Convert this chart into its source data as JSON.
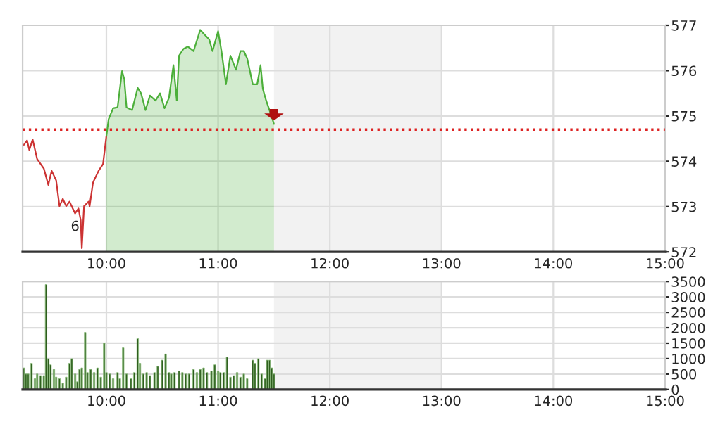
{
  "chart_data": [
    {
      "type": "area",
      "annotations": [
        {
          "text": "6",
          "x": 9.72,
          "y": 572.55
        }
      ],
      "series": [
        {
          "type": "line",
          "color": "#cc3333",
          "x": [
            9.26,
            9.29,
            9.31,
            9.34,
            9.38,
            9.44,
            9.48,
            9.51,
            9.55,
            9.58,
            9.61,
            9.64,
            9.67,
            9.72,
            9.75,
            9.77,
            9.78,
            9.8,
            9.84,
            9.85,
            9.88,
            9.93,
            9.97,
            10.0
          ],
          "values": [
            574.36,
            574.46,
            574.25,
            574.48,
            574.05,
            573.84,
            573.48,
            573.79,
            573.58,
            573.01,
            573.17,
            573.01,
            573.11,
            572.85,
            572.96,
            572.7,
            572.08,
            573.01,
            573.11,
            573.01,
            573.53,
            573.79,
            573.94,
            574.56
          ]
        },
        {
          "type": "area",
          "color": "#4caf3a",
          "x": [
            10.0,
            10.02,
            10.06,
            10.1,
            10.14,
            10.16,
            10.18,
            10.23,
            10.28,
            10.31,
            10.35,
            10.39,
            10.44,
            10.48,
            10.52,
            10.56,
            10.6,
            10.63,
            10.65,
            10.69,
            10.73,
            10.78,
            10.84,
            10.88,
            10.92,
            10.95,
            11.0,
            11.03,
            11.07,
            11.11,
            11.16,
            11.2,
            11.23,
            11.26,
            11.31,
            11.35,
            11.38,
            11.4,
            11.43,
            11.48,
            11.5
          ],
          "values": [
            574.56,
            574.93,
            575.17,
            575.19,
            575.99,
            575.81,
            575.19,
            575.13,
            575.62,
            575.5,
            575.13,
            575.45,
            575.34,
            575.5,
            575.17,
            575.4,
            576.12,
            575.34,
            576.33,
            576.48,
            576.53,
            576.43,
            576.9,
            576.79,
            576.69,
            576.43,
            576.87,
            576.43,
            575.7,
            576.33,
            576.02,
            576.43,
            576.43,
            576.27,
            575.7,
            575.7,
            576.12,
            575.6,
            575.34,
            574.98,
            574.82
          ]
        }
      ],
      "xlim": [
        9.25,
        15
      ],
      "xticks": [
        {
          "value": 10,
          "label": "10:00"
        },
        {
          "value": 11,
          "label": "11:00"
        },
        {
          "value": 12,
          "label": "12:00"
        },
        {
          "value": 13,
          "label": "13:00"
        },
        {
          "value": 14,
          "label": "14:00"
        },
        {
          "value": 15,
          "label": "15:00"
        }
      ],
      "ylim": [
        572,
        577
      ],
      "yticks": [
        572,
        573,
        574,
        575,
        576,
        577
      ],
      "ref_lines": [
        {
          "axis": "y",
          "value": 574.7,
          "color": "#dd2222",
          "line_style": "dotted"
        }
      ],
      "bands": [
        {
          "axis": "x",
          "from": 11.5,
          "to": 13,
          "color": "#f2f2f2"
        }
      ],
      "grid": true,
      "legend": false
    },
    {
      "type": "bar",
      "series": [
        {
          "color": "#2e5e1e",
          "x": [
            9.26,
            9.28,
            9.3,
            9.33,
            9.36,
            9.38,
            9.41,
            9.44,
            9.46,
            9.48,
            9.5,
            9.53,
            9.55,
            9.58,
            9.61,
            9.64,
            9.67,
            9.69,
            9.72,
            9.74,
            9.76,
            9.78,
            9.81,
            9.83,
            9.86,
            9.89,
            9.92,
            9.95,
            9.98,
            10.0,
            10.03,
            10.06,
            10.1,
            10.12,
            10.15,
            10.18,
            10.22,
            10.25,
            10.28,
            10.3,
            10.33,
            10.36,
            10.39,
            10.43,
            10.46,
            10.5,
            10.53,
            10.56,
            10.58,
            10.61,
            10.65,
            10.68,
            10.71,
            10.74,
            10.78,
            10.81,
            10.84,
            10.87,
            10.9,
            10.94,
            10.97,
            11.0,
            11.02,
            11.05,
            11.08,
            11.11,
            11.14,
            11.17,
            11.2,
            11.23,
            11.26,
            11.31,
            11.33,
            11.36,
            11.39,
            11.42,
            11.44,
            11.46,
            11.48,
            11.5
          ],
          "values": [
            700,
            500,
            500,
            850,
            350,
            500,
            450,
            450,
            3400,
            1000,
            800,
            650,
            400,
            350,
            200,
            400,
            850,
            1000,
            500,
            250,
            650,
            700,
            1850,
            550,
            650,
            550,
            700,
            400,
            1500,
            550,
            500,
            350,
            550,
            350,
            1350,
            500,
            350,
            550,
            1650,
            850,
            500,
            550,
            450,
            550,
            750,
            950,
            1150,
            550,
            500,
            550,
            600,
            550,
            500,
            500,
            650,
            550,
            650,
            700,
            550,
            600,
            800,
            600,
            550,
            550,
            1050,
            400,
            450,
            550,
            400,
            500,
            350,
            950,
            850,
            1000,
            500,
            350,
            950,
            950,
            700,
            500
          ]
        }
      ],
      "xlim": [
        9.25,
        15
      ],
      "xticks": [
        {
          "value": 10,
          "label": "10:00"
        },
        {
          "value": 11,
          "label": "11:00"
        },
        {
          "value": 12,
          "label": "12:00"
        },
        {
          "value": 13,
          "label": "13:00"
        },
        {
          "value": 14,
          "label": "14:00"
        },
        {
          "value": 15,
          "label": "15:00"
        }
      ],
      "ylim": [
        0,
        3500
      ],
      "yticks": [
        0,
        500,
        1000,
        1500,
        2000,
        2500,
        3000,
        3500
      ],
      "bands": [
        {
          "axis": "x",
          "from": 11.5,
          "to": 13,
          "color": "#f2f2f2"
        }
      ],
      "grid": true,
      "legend": false
    }
  ]
}
